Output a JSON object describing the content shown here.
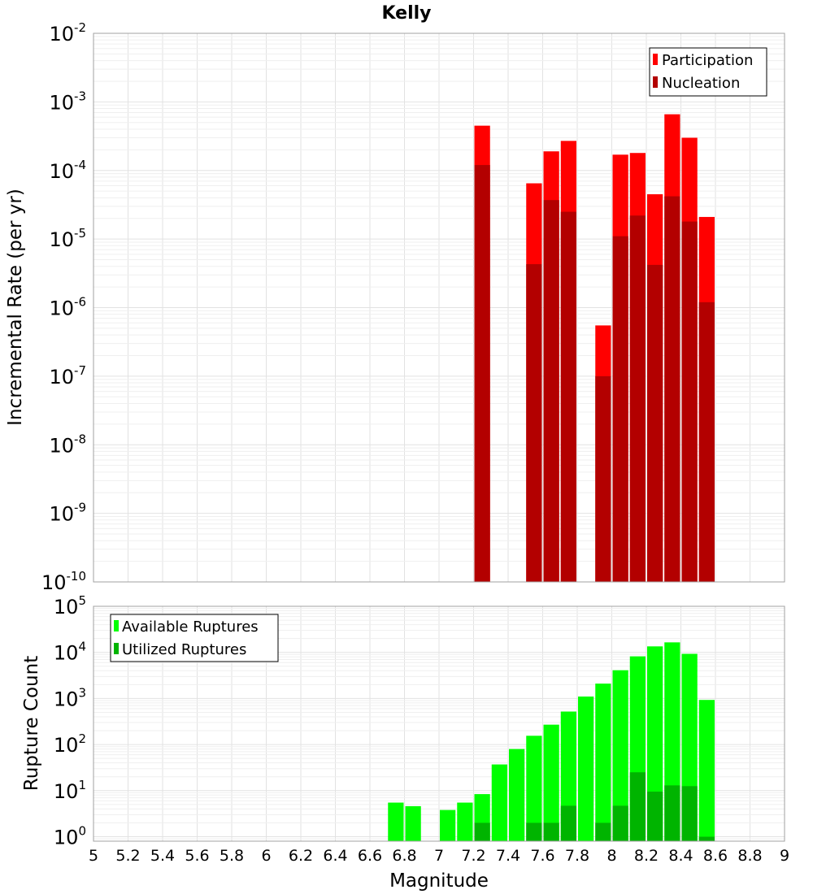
{
  "chart_data": [
    {
      "type": "bar",
      "title": "Kelly",
      "ylabel": "Incremental Rate (per yr)",
      "xlabel": "",
      "xlim": [
        5,
        9
      ],
      "ylim": [
        1e-10,
        0.01
      ],
      "yscale": "log",
      "grid": true,
      "legend_position": "top-right",
      "bar_width": 0.1,
      "series": [
        {
          "name": "Participation",
          "color": "#ff0000",
          "x": [
            7.25,
            7.55,
            7.65,
            7.75,
            7.95,
            8.05,
            8.15,
            8.25,
            8.35,
            8.45,
            8.55
          ],
          "values": [
            0.00045,
            6.5e-05,
            0.00019,
            0.00027,
            5.5e-07,
            0.00017,
            0.00018,
            4.5e-05,
            0.00066,
            0.0003,
            2.1e-05
          ]
        },
        {
          "name": "Nucleation",
          "color": "#b30000",
          "x": [
            7.25,
            7.55,
            7.65,
            7.75,
            7.95,
            8.05,
            8.15,
            8.25,
            8.35,
            8.45,
            8.55
          ],
          "values": [
            0.00012,
            4.3e-06,
            3.7e-05,
            2.5e-05,
            1e-07,
            1.1e-05,
            2.2e-05,
            4.2e-06,
            4.2e-05,
            1.8e-05,
            1.2e-06
          ]
        }
      ],
      "yticks": [
        {
          "base": "10",
          "exp": "-10"
        },
        {
          "base": "10",
          "exp": "-9"
        },
        {
          "base": "10",
          "exp": "-8"
        },
        {
          "base": "10",
          "exp": "-7"
        },
        {
          "base": "10",
          "exp": "-6"
        },
        {
          "base": "10",
          "exp": "-5"
        },
        {
          "base": "10",
          "exp": "-4"
        },
        {
          "base": "10",
          "exp": "-3"
        },
        {
          "base": "10",
          "exp": "-2"
        }
      ]
    },
    {
      "type": "bar",
      "title": "",
      "ylabel": "Rupture Count",
      "xlabel": "Magnitude",
      "xlim": [
        5,
        9
      ],
      "ylim": [
        0.8,
        100000
      ],
      "yscale": "log",
      "grid": true,
      "legend_position": "top-left",
      "bar_width": 0.1,
      "series": [
        {
          "name": "Available Ruptures",
          "color": "#00ff00",
          "x": [
            6.75,
            6.85,
            7.05,
            7.15,
            7.25,
            7.35,
            7.45,
            7.55,
            7.65,
            7.75,
            7.85,
            7.95,
            8.05,
            8.15,
            8.25,
            8.35,
            8.45,
            8.55
          ],
          "values": [
            5.5,
            4.6,
            3.8,
            5.5,
            8.4,
            37,
            80,
            155,
            270,
            520,
            1100,
            2100,
            4100,
            8200,
            13500,
            16500,
            9300,
            930
          ]
        },
        {
          "name": "Utilized Ruptures",
          "color": "#00b400",
          "x": [
            7.25,
            7.55,
            7.65,
            7.75,
            7.95,
            8.05,
            8.15,
            8.25,
            8.35,
            8.45,
            8.55
          ],
          "values": [
            2,
            2,
            2,
            4.7,
            2,
            4.7,
            25,
            9.5,
            13,
            12.5,
            1
          ]
        }
      ],
      "xticks": [
        "5",
        "5.2",
        "5.4",
        "5.6",
        "5.8",
        "6",
        "6.2",
        "6.4",
        "6.6",
        "6.8",
        "7",
        "7.2",
        "7.4",
        "7.6",
        "7.8",
        "8",
        "8.2",
        "8.4",
        "8.6",
        "8.8",
        "9"
      ],
      "yticks": [
        {
          "base": "10",
          "exp": "0"
        },
        {
          "base": "10",
          "exp": "1"
        },
        {
          "base": "10",
          "exp": "2"
        },
        {
          "base": "10",
          "exp": "3"
        },
        {
          "base": "10",
          "exp": "4"
        },
        {
          "base": "10",
          "exp": "5"
        }
      ]
    }
  ]
}
